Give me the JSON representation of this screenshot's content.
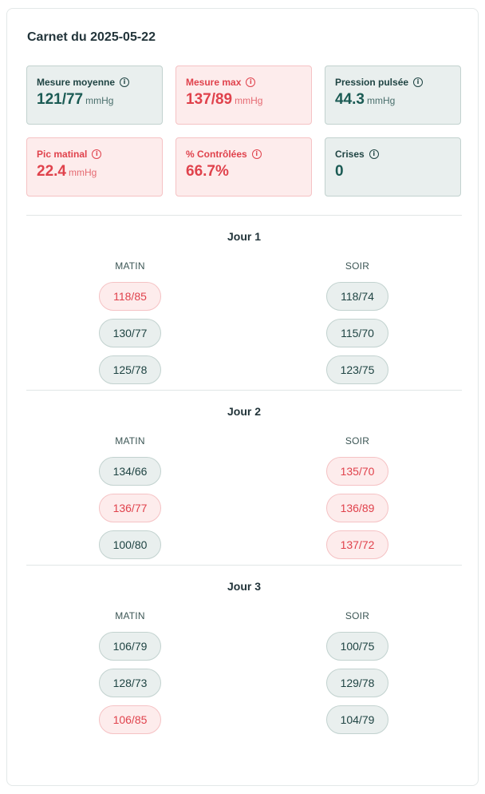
{
  "title": "Carnet du 2025-05-22",
  "stats": [
    {
      "label": "Mesure moyenne",
      "value": "121/77",
      "unit": "mmHg",
      "status": "ok"
    },
    {
      "label": "Mesure max",
      "value": "137/89",
      "unit": "mmHg",
      "status": "alert"
    },
    {
      "label": "Pression pulsée",
      "value": "44.3",
      "unit": "mmHg",
      "status": "ok"
    },
    {
      "label": "Pic matinal",
      "value": "22.4",
      "unit": "mmHg",
      "status": "alert"
    },
    {
      "label": "% Contrôlées",
      "value": "66.7%",
      "unit": "",
      "status": "alert"
    },
    {
      "label": "Crises",
      "value": "0",
      "unit": "",
      "status": "ok"
    }
  ],
  "info_glyph": "i",
  "days": [
    {
      "title": "Jour 1",
      "morning_label": "MATIN",
      "evening_label": "SOIR",
      "morning": [
        {
          "value": "118/85",
          "status": "alert"
        },
        {
          "value": "130/77",
          "status": "ok"
        },
        {
          "value": "125/78",
          "status": "ok"
        }
      ],
      "evening": [
        {
          "value": "118/74",
          "status": "ok"
        },
        {
          "value": "115/70",
          "status": "ok"
        },
        {
          "value": "123/75",
          "status": "ok"
        }
      ]
    },
    {
      "title": "Jour 2",
      "morning_label": "MATIN",
      "evening_label": "SOIR",
      "morning": [
        {
          "value": "134/66",
          "status": "ok"
        },
        {
          "value": "136/77",
          "status": "alert"
        },
        {
          "value": "100/80",
          "status": "ok"
        }
      ],
      "evening": [
        {
          "value": "135/70",
          "status": "alert"
        },
        {
          "value": "136/89",
          "status": "alert"
        },
        {
          "value": "137/72",
          "status": "alert"
        }
      ]
    },
    {
      "title": "Jour 3",
      "morning_label": "MATIN",
      "evening_label": "SOIR",
      "morning": [
        {
          "value": "106/79",
          "status": "ok"
        },
        {
          "value": "128/73",
          "status": "ok"
        },
        {
          "value": "106/85",
          "status": "alert"
        }
      ],
      "evening": [
        {
          "value": "100/75",
          "status": "ok"
        },
        {
          "value": "129/78",
          "status": "ok"
        },
        {
          "value": "104/79",
          "status": "ok"
        }
      ]
    }
  ],
  "colors": {
    "ok_bg": "#e9efee",
    "ok_border": "#c2d2cf",
    "ok_text": "#1b5b54",
    "alert_bg": "#fdecec",
    "alert_border": "#f5c2c4",
    "alert_text": "#e0424c"
  }
}
